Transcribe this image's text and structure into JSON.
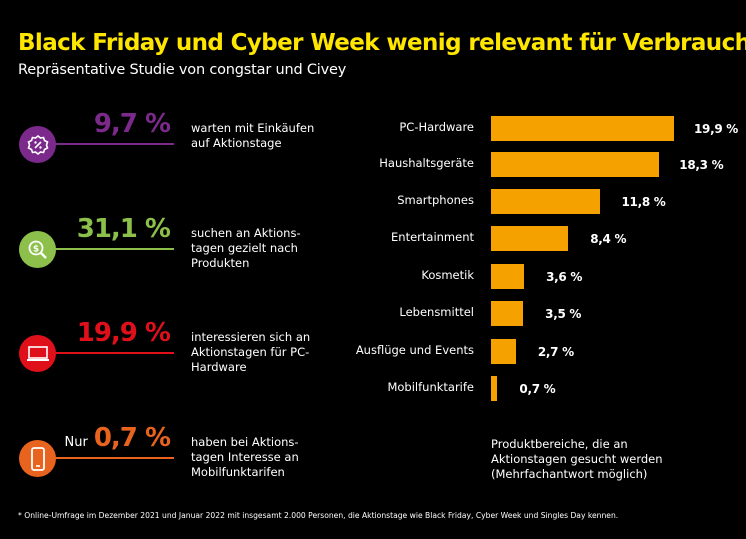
{
  "title": "Black Friday und Cyber Week wenig relevant für Verbraucher",
  "subtitle": "Repräsentative Studie von congstar und Civey",
  "stats": [
    {
      "prefix": "",
      "value": "9,7 %",
      "text": "warten mit Einkäufen auf Aktionstage",
      "color": "#7b2a8c",
      "icon": "percent-badge-icon"
    },
    {
      "prefix": "",
      "value": "31,1 %",
      "text": "suchen an Aktions-tagen gezielt nach Produkten",
      "color": "#8cc04a",
      "icon": "dollar-search-icon"
    },
    {
      "prefix": "",
      "value": "19,9 %",
      "text": "interessieren sich an Aktionstagen für PC-Hardware",
      "color": "#e0101a",
      "icon": "laptop-icon"
    },
    {
      "prefix": "Nur",
      "value": "0,7 %",
      "text": "haben bei Aktions-tagen Interesse an Mobilfunktarifen",
      "color": "#e8641e",
      "icon": "smartphone-icon"
    }
  ],
  "chart_data": {
    "type": "bar",
    "orientation": "horizontal",
    "categories": [
      "PC-Hardware",
      "Haushaltsgeräte",
      "Smartphones",
      "Entertainment",
      "Kosmetik",
      "Lebensmittel",
      "Ausflüge und Events",
      "Mobilfunktarife"
    ],
    "values": [
      19.9,
      18.3,
      11.8,
      8.4,
      3.6,
      3.5,
      2.7,
      0.7
    ],
    "labels": [
      "19,9 %",
      "18,3 %",
      "11,8 %",
      "8,4 %",
      "3,6 %",
      "3,5 %",
      "2,7 %",
      "0,7 %"
    ],
    "bar_color": "#f5a100",
    "caption": "Produktbereiche, die an Aktionstagen gesucht werden (Mehrfachantwort möglich)"
  },
  "footnote": "* Online-Umfrage im Dezember 2021 und Januar 2022 mit insgesamt 2.000 Personen, die Aktionstage wie Black Friday, Cyber Week und Singles Day kennen."
}
